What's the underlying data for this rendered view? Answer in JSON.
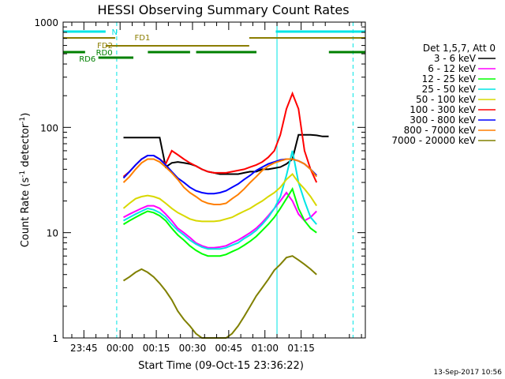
{
  "chart_data": {
    "type": "line",
    "title": "HESSI Observing Summary Count Rates",
    "xlabel": "Start Time (09-Oct-15 23:36:22)",
    "ylabel_main": "Count Rate (s",
    "ylabel_sup1": "-1",
    "ylabel_mid": " detector",
    "ylabel_sup2": "-1",
    "ylabel_end": ")",
    "y_scale": "log",
    "ylim": [
      1,
      1000
    ],
    "xlim_minutes": [
      -23.6,
      101.6
    ],
    "x_ticks": [
      "23:45",
      "00:00",
      "00:15",
      "00:30",
      "00:45",
      "01:00",
      "01:15"
    ],
    "y_ticks": [
      "1",
      "10",
      "100",
      "1000"
    ],
    "legend_title": "Det 1,5,7, Att 0",
    "legend_position": "right",
    "timestamp": "13-Sep-2017 10:56",
    "colors": {
      "cyan": "#00e5e5",
      "olive": "#8b7d00",
      "green": "#008000"
    },
    "flag_labels": {
      "n": "N",
      "fd1": "FD1",
      "fd2": "FD2",
      "rd0": "RD0",
      "rd6": "RD6"
    },
    "series": [
      {
        "name": "3 - 6 keV",
        "color": "#000000",
        "values": [
          null,
          null,
          null,
          null,
          null,
          null,
          null,
          null,
          null,
          null,
          80,
          80,
          80,
          80,
          80,
          80,
          80,
          42,
          46,
          47,
          46,
          45,
          43,
          40,
          38,
          37,
          36,
          36,
          36,
          36,
          37,
          38,
          38,
          40,
          40,
          41,
          42,
          45,
          50,
          85,
          85,
          85,
          84,
          82,
          82,
          null,
          null
        ]
      },
      {
        "name": "6 - 12 keV",
        "color": "#ff00ff",
        "values": [
          null,
          null,
          null,
          null,
          null,
          null,
          null,
          null,
          null,
          null,
          14,
          15,
          16,
          17,
          18,
          18,
          17,
          15,
          13,
          11,
          10,
          9,
          8,
          7.5,
          7.2,
          7.2,
          7.3,
          7.5,
          8,
          8.5,
          9.2,
          10,
          11,
          12.5,
          14.5,
          17,
          20,
          24,
          20,
          15,
          13,
          14,
          16,
          null,
          null,
          null,
          null
        ]
      },
      {
        "name": "12 - 25 keV",
        "color": "#00ff00",
        "values": [
          null,
          null,
          null,
          null,
          null,
          null,
          null,
          null,
          null,
          null,
          12,
          13,
          14,
          15,
          16,
          15.5,
          14.5,
          13,
          11,
          9.5,
          8.5,
          7.5,
          6.8,
          6.3,
          6,
          6,
          6,
          6.2,
          6.6,
          7,
          7.6,
          8.3,
          9.2,
          10.5,
          12,
          14,
          17,
          21,
          26,
          17,
          13,
          11,
          10,
          null,
          null,
          null,
          null
        ]
      },
      {
        "name": "25 - 50 keV",
        "color": "#00e5e5",
        "values": [
          null,
          null,
          null,
          null,
          null,
          null,
          null,
          null,
          null,
          null,
          13,
          14,
          15,
          16,
          17,
          16.5,
          15.5,
          14,
          12,
          10.5,
          9.5,
          8.5,
          7.8,
          7.3,
          7,
          7,
          7,
          7.2,
          7.6,
          8,
          8.8,
          9.5,
          10.5,
          12,
          14,
          17,
          22,
          35,
          60,
          30,
          20,
          14,
          12,
          null,
          null,
          null,
          null
        ]
      },
      {
        "name": "50 - 100 keV",
        "color": "#d8d800",
        "values": [
          null,
          null,
          null,
          null,
          null,
          null,
          null,
          null,
          null,
          null,
          17,
          19,
          21,
          22,
          22.5,
          22,
          21,
          19,
          17,
          15.5,
          14.5,
          13.5,
          13,
          12.8,
          12.8,
          12.8,
          13,
          13.5,
          14,
          15,
          16,
          17,
          18.5,
          20,
          22,
          24,
          27,
          32,
          36,
          30,
          26,
          22,
          18,
          null,
          null,
          null,
          null
        ]
      },
      {
        "name": "100 - 300 keV",
        "color": "#ff0000",
        "values": [
          null,
          null,
          null,
          null,
          null,
          null,
          null,
          null,
          null,
          null,
          34,
          38,
          44,
          50,
          54,
          54,
          50,
          45,
          60,
          55,
          50,
          46,
          43,
          40,
          38,
          37,
          37,
          37,
          38,
          39,
          40,
          42,
          44,
          47,
          52,
          60,
          85,
          150,
          210,
          150,
          60,
          40,
          30,
          null,
          null,
          null,
          null
        ]
      },
      {
        "name": "300 - 800 keV",
        "color": "#0000ff",
        "values": [
          null,
          null,
          null,
          null,
          null,
          null,
          null,
          null,
          null,
          null,
          33,
          38,
          44,
          50,
          54,
          54,
          50,
          44,
          38,
          33,
          30,
          27,
          25,
          24,
          23.5,
          23.5,
          24,
          25,
          27,
          29,
          32,
          35,
          39,
          42,
          45,
          47,
          49,
          50,
          50,
          48,
          45,
          40,
          35,
          null,
          null,
          null,
          null
        ]
      },
      {
        "name": "800 - 7000 keV",
        "color": "#ff7f00",
        "values": [
          null,
          null,
          null,
          null,
          null,
          null,
          null,
          null,
          null,
          null,
          30,
          34,
          40,
          46,
          50,
          50,
          47,
          42,
          37,
          32,
          27,
          24,
          22,
          20,
          19,
          18.5,
          18.5,
          19,
          21,
          23,
          26,
          30,
          34,
          39,
          43,
          46,
          48,
          50,
          50,
          48,
          45,
          40,
          34,
          null,
          null,
          null,
          null
        ]
      },
      {
        "name": "7000 - 20000 keV",
        "color": "#808000",
        "values": [
          null,
          null,
          null,
          null,
          null,
          null,
          null,
          null,
          null,
          null,
          3.5,
          3.8,
          4.2,
          4.5,
          4.2,
          3.8,
          3.3,
          2.8,
          2.3,
          1.8,
          1.5,
          1.3,
          1.1,
          1.0,
          1.0,
          1.0,
          1.0,
          1.0,
          1.1,
          1.3,
          1.6,
          2,
          2.5,
          3,
          3.6,
          4.4,
          5,
          5.8,
          6,
          5.5,
          5,
          4.5,
          4,
          null,
          null,
          null,
          null
        ]
      }
    ]
  }
}
